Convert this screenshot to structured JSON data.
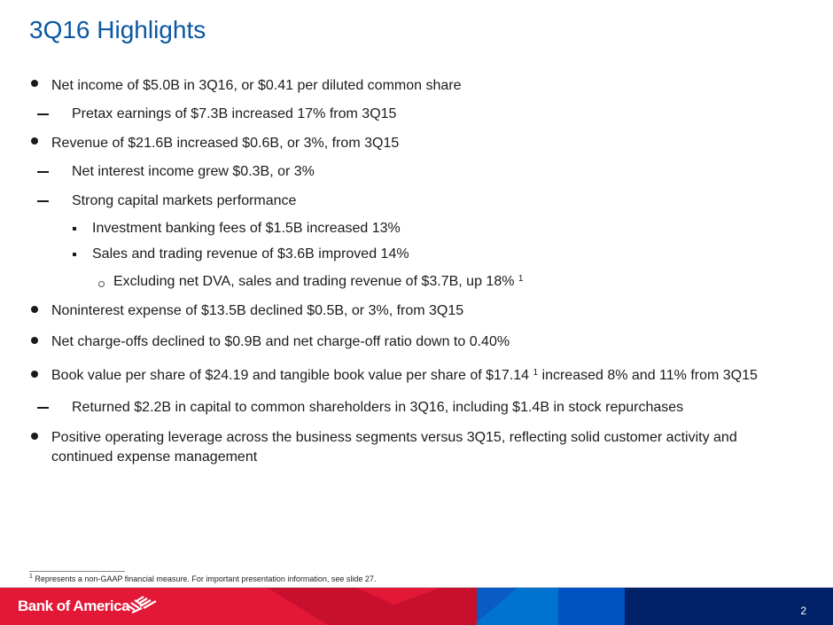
{
  "title": "3Q16 Highlights",
  "items": [
    {
      "level": 1,
      "text": "Net income of $5.0B in 3Q16, or $0.41 per diluted common share"
    },
    {
      "level": 2,
      "text": "Pretax earnings of $7.3B increased 17% from 3Q15"
    },
    {
      "level": 1,
      "text": "Revenue of $21.6B increased $0.6B, or 3%, from 3Q15"
    },
    {
      "level": 2,
      "text": "Net interest income grew $0.3B, or 3%"
    },
    {
      "level": 2,
      "text": "Strong capital markets performance"
    },
    {
      "level": 3,
      "text": "Investment banking fees of $1.5B increased 13%"
    },
    {
      "level": 3,
      "text": "Sales and trading revenue of $3.6B improved 14%"
    },
    {
      "level": 4,
      "text": "Excluding net DVA, sales and trading revenue of $3.7B, up 18% ",
      "sup": "1"
    },
    {
      "level": 1,
      "text": "Noninterest expense of $13.5B declined $0.5B, or 3%, from 3Q15"
    },
    {
      "level": 1,
      "text": "Net charge-offs declined to $0.9B and net charge-off ratio down to 0.40%"
    },
    {
      "level": 1,
      "text": "Book value per share of $24.19 and tangible book value per share of $17.14 ",
      "sup": "1",
      "text2": " increased 8% and 11% from 3Q15"
    },
    {
      "level": 2,
      "text": "Returned $2.2B in capital to common shareholders in 3Q16, including $1.4B in stock repurchases"
    },
    {
      "level": 1,
      "text": "Positive operating leverage across the business segments versus 3Q15, reflecting solid customer activity and",
      "text_line2": "continued expense management"
    }
  ],
  "footnote": {
    "sup": "1",
    "text": " Represents a non-GAAP financial measure. For important presentation information, see slide 27."
  },
  "footer": {
    "logo": "Bank of America",
    "page": "2"
  },
  "colors": {
    "title": "#0b57a4",
    "red": "#e31837",
    "navy": "#012169"
  }
}
